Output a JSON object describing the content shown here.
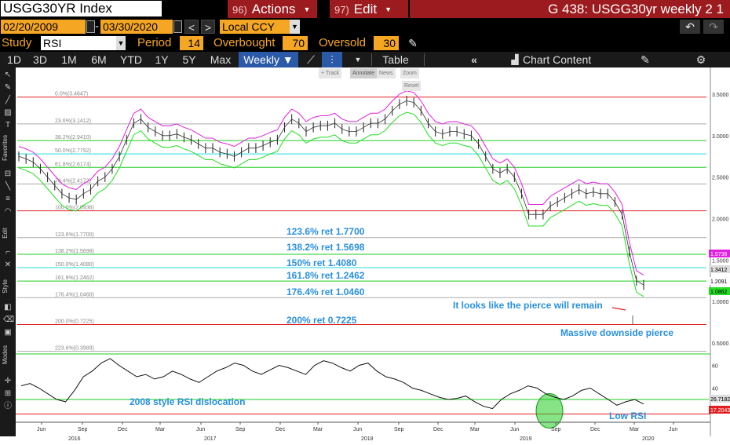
{
  "header": {
    "ticker": "USGG30YR Index",
    "actions_num": "96)",
    "actions_label": "Actions",
    "edit_num": "97)",
    "edit_label": "Edit",
    "window_title": "G 438: USGG30yr weekly 2 1"
  },
  "dates": {
    "start": "02/20/2009",
    "sep": "-",
    "end": "03/30/2020",
    "currency": "Local CCY"
  },
  "study": {
    "label": "Study",
    "value": "RSI",
    "period_label": "Period",
    "period": "14",
    "overbought_label": "Overbought",
    "overbought": "70",
    "oversold_label": "Oversold",
    "oversold": "30"
  },
  "toolbar": {
    "periods": [
      "1D",
      "3D",
      "1M",
      "6M",
      "YTD",
      "1Y",
      "5Y",
      "Max"
    ],
    "weekly": "Weekly ▼",
    "table": "Table",
    "chart_content": "Chart Content",
    "mini_tools": [
      "+ Track",
      "Annotate",
      "News",
      "Zoom"
    ],
    "reset": "Reset"
  },
  "sidebar": {
    "favorites": "Favorites",
    "edit": "Edit",
    "style": "Style",
    "modes": "Modes"
  },
  "colors": {
    "red_bar": "#9b1b1f",
    "orange": "#f5a623",
    "fib_red": "#e02020",
    "fib_green": "#22cc22",
    "fib_cyan": "#22dddd",
    "fib_gray": "#aaaaaa",
    "upper_band": "#e020e0",
    "lower_band": "#22dd22",
    "annotation_blue": "#2a90e0"
  },
  "chart_data": {
    "type": "line",
    "title": "",
    "price_axis": [
      "3.5000",
      "3.0000",
      "2.5000",
      "2.0000",
      "1.5000",
      "1.0000",
      "0.5000"
    ],
    "rsi_axis": [
      "60",
      "40",
      "20"
    ],
    "x_ticks": [
      "Jun",
      "Sep",
      "Dec",
      "Mar",
      "Jun",
      "Sep",
      "Dec",
      "Mar",
      "Jun",
      "Sep",
      "Dec",
      "Mar",
      "Jun",
      "Sep",
      "Dec",
      "Mar",
      "Jun"
    ],
    "years": [
      "2016",
      "2017",
      "2018",
      "2019",
      "2020"
    ],
    "fib_levels": [
      {
        "label": "0.0%(3.4647)",
        "value": 3.4647,
        "color": "red"
      },
      {
        "label": "23.6%(3.1412)",
        "value": 3.1412,
        "color": "gray"
      },
      {
        "label": "38.2%(2.9410)",
        "value": 2.941,
        "color": "green"
      },
      {
        "label": "50.0%(2.7792)",
        "value": 2.7792,
        "color": "cyan"
      },
      {
        "label": "61.8%(2.6174)",
        "value": 2.6174,
        "color": "green"
      },
      {
        "label": "76.4%(2.4172)",
        "value": 2.4172,
        "color": "gray"
      },
      {
        "label": "100.0%(2.0936)",
        "value": 2.0936,
        "color": "red"
      },
      {
        "label": "123.6%(1.7700)",
        "value": 1.77,
        "color": "gray"
      },
      {
        "label": "138.2%(1.5698)",
        "value": 1.5698,
        "color": "green"
      },
      {
        "label": "150.0%(1.4080)",
        "value": 1.408,
        "color": "cyan"
      },
      {
        "label": "161.8%(1.2462)",
        "value": 1.2462,
        "color": "green"
      },
      {
        "label": "176.4%(1.0460)",
        "value": 1.046,
        "color": "gray"
      },
      {
        "label": "200.0%(0.7225)",
        "value": 0.7225,
        "color": "red"
      },
      {
        "label": "223.6%(0.3989)",
        "value": 0.3989,
        "color": "gray"
      }
    ],
    "annotations": [
      "123.6% ret 1.7700",
      "138.2% ret 1.5698",
      "150% ret 1.4080",
      "161.8% ret 1.2462",
      "176.4% ret 1.0460",
      "200% ret 0.7225",
      "It looks like the pierce will remain",
      "Massive downside pierce",
      "2008 style RSI dislocation",
      "Low RSI"
    ],
    "right_labels": [
      {
        "text": "1.5736",
        "color": "#e020e0"
      },
      {
        "text": "1.3412",
        "color": "#dddddd"
      },
      {
        "text": "1.2091",
        "color": "#ffffff"
      },
      {
        "text": "1.0862",
        "color": "#22dd22"
      },
      {
        "text": "26.7182",
        "color": "#dddddd"
      },
      {
        "text": "17.2043",
        "color": "#e02020"
      }
    ],
    "price_series": [
      2.75,
      2.72,
      2.68,
      2.6,
      2.5,
      2.4,
      2.3,
      2.25,
      2.23,
      2.3,
      2.35,
      2.45,
      2.5,
      2.6,
      2.75,
      2.95,
      3.15,
      3.2,
      3.1,
      3.05,
      3.0,
      3.0,
      3.02,
      2.98,
      2.95,
      2.9,
      2.85,
      2.85,
      2.8,
      2.78,
      2.75,
      2.8,
      2.85,
      2.85,
      2.88,
      2.92,
      2.95,
      3.1,
      3.2,
      3.15,
      3.05,
      3.1,
      3.12,
      3.12,
      3.15,
      3.08,
      3.05,
      3.05,
      3.1,
      3.15,
      3.15,
      3.2,
      3.3,
      3.38,
      3.42,
      3.4,
      3.3,
      3.15,
      3.05,
      3.02,
      3.05,
      3.05,
      3.02,
      3.0,
      2.9,
      2.75,
      2.6,
      2.55,
      2.6,
      2.5,
      2.3,
      2.05,
      2.05,
      2.05,
      2.15,
      2.2,
      2.25,
      2.3,
      2.35,
      2.3,
      2.32,
      2.3,
      2.3,
      2.2,
      2.05,
      1.6,
      1.25,
      1.2
    ],
    "rsi_series": [
      42,
      44,
      40,
      35,
      30,
      28,
      38,
      50,
      55,
      62,
      66,
      60,
      55,
      50,
      52,
      48,
      50,
      55,
      52,
      48,
      45,
      50,
      55,
      58,
      62,
      60,
      55,
      52,
      56,
      60,
      58,
      55,
      52,
      60,
      64,
      62,
      58,
      55,
      60,
      62,
      55,
      50,
      48,
      45,
      40,
      38,
      35,
      32,
      30,
      31,
      33,
      28,
      24,
      22,
      30,
      35,
      38,
      42,
      40,
      35,
      32,
      30,
      33,
      38,
      40,
      35,
      30,
      25,
      28,
      30,
      26
    ]
  }
}
